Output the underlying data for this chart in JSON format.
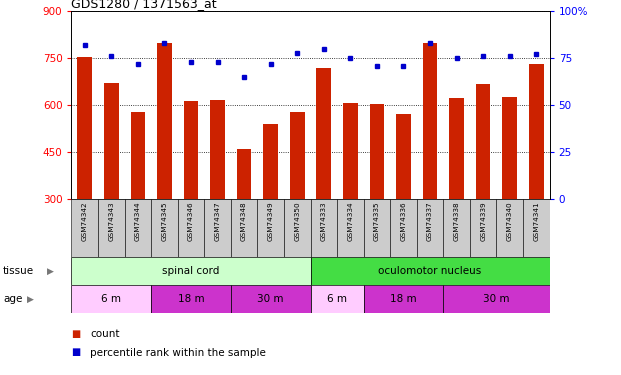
{
  "title": "GDS1280 / 1371563_at",
  "samples": [
    "GSM74342",
    "GSM74343",
    "GSM74344",
    "GSM74345",
    "GSM74346",
    "GSM74347",
    "GSM74348",
    "GSM74349",
    "GSM74350",
    "GSM74333",
    "GSM74334",
    "GSM74335",
    "GSM74336",
    "GSM74337",
    "GSM74338",
    "GSM74339",
    "GSM74340",
    "GSM74341"
  ],
  "counts": [
    755,
    672,
    578,
    800,
    612,
    615,
    460,
    540,
    578,
    718,
    608,
    602,
    570,
    800,
    622,
    668,
    625,
    730
  ],
  "percentiles": [
    82,
    76,
    72,
    83,
    73,
    73,
    65,
    72,
    78,
    80,
    75,
    71,
    71,
    83,
    75,
    76,
    76,
    77
  ],
  "ymin": 300,
  "ymax": 900,
  "yticks_left": [
    300,
    450,
    600,
    750,
    900
  ],
  "yticks_right": [
    0,
    25,
    50,
    75,
    100
  ],
  "bar_color": "#cc2200",
  "dot_color": "#0000cc",
  "xticklabel_bg": "#d0d0d0",
  "tissue_groups": [
    {
      "label": "spinal cord",
      "start": 0,
      "end": 9,
      "color": "#ccffcc"
    },
    {
      "label": "oculomotor nucleus",
      "start": 9,
      "end": 18,
      "color": "#44dd44"
    }
  ],
  "age_groups": [
    {
      "label": "6 m",
      "start": 0,
      "end": 3,
      "color": "#ffccff"
    },
    {
      "label": "18 m",
      "start": 3,
      "end": 6,
      "color": "#cc33cc"
    },
    {
      "label": "30 m",
      "start": 6,
      "end": 9,
      "color": "#cc33cc"
    },
    {
      "label": "6 m",
      "start": 9,
      "end": 11,
      "color": "#ffccff"
    },
    {
      "label": "18 m",
      "start": 11,
      "end": 14,
      "color": "#cc33cc"
    },
    {
      "label": "30 m",
      "start": 14,
      "end": 18,
      "color": "#cc33cc"
    }
  ],
  "legend_count_color": "#cc2200",
  "legend_pct_color": "#0000cc"
}
